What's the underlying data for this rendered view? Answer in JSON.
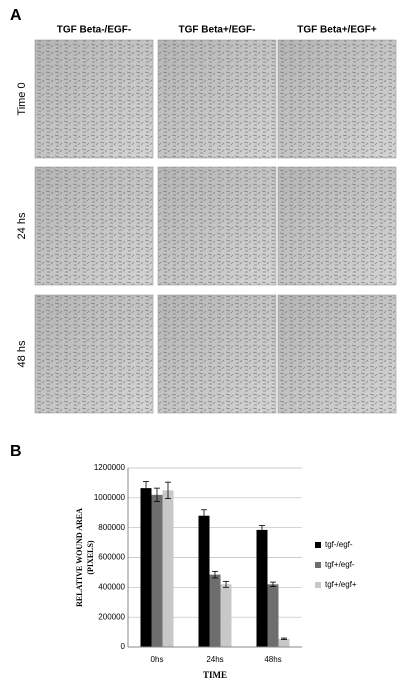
{
  "panel_a": {
    "label": "A",
    "columns": [
      "TGF Beta-/EGF-",
      "TGF Beta+/EGF-",
      "TGF Beta+/EGF+"
    ],
    "rows": [
      "Time 0",
      "24 hs",
      "48 hs"
    ]
  },
  "panel_b": {
    "label": "B"
  },
  "chart_data": {
    "type": "bar",
    "y_label_lines": [
      "RELATIVE WOUND AREA",
      "(PIXELS)"
    ],
    "x_label": "TIME",
    "categories": [
      "0hs",
      "24hs",
      "48hs"
    ],
    "series": [
      {
        "name": "tgf-/egf-",
        "color": "#000000",
        "values": [
          1065000,
          880000,
          785000
        ],
        "errors": [
          45000,
          40000,
          30000
        ]
      },
      {
        "name": "tgf+/egf-",
        "color": "#6e6e6e",
        "values": [
          1020000,
          485000,
          420000
        ],
        "errors": [
          45000,
          22000,
          15000
        ]
      },
      {
        "name": "tgf+/egf+",
        "color": "#c8c8c8",
        "values": [
          1050000,
          420000,
          55000
        ],
        "errors": [
          55000,
          20000,
          5000
        ]
      }
    ],
    "ylim": [
      0,
      1200000
    ],
    "yticks": [
      0,
      200000,
      400000,
      600000,
      800000,
      1000000,
      1200000
    ],
    "grid": true,
    "legend": "right"
  }
}
